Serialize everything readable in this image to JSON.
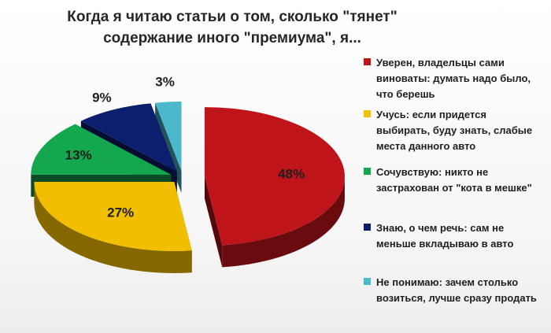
{
  "chart_data": {
    "type": "pie",
    "title_lines": [
      "Когда я читаю статьи о том, сколько \"тянет\"",
      "содержание иного \"премиума\", я..."
    ],
    "categories": [
      "Уверен, владельцы сами виноваты: думать надо было, что берешь",
      "Учусь: если придется выбирать, буду знать, слабые места данного авто",
      "Сочувствую: никто не застрахован от \"кота в мешке\"",
      "Знаю, о чем речь: сам не меньше вкладываю в авто",
      "Не понимаю: зачем столько возиться, лучше сразу продать"
    ],
    "values": [
      48,
      27,
      13,
      9,
      3
    ],
    "data_labels": [
      "48%",
      "27%",
      "13%",
      "9%",
      "3%"
    ],
    "colors": [
      "#c0141b",
      "#f2bf00",
      "#13a84d",
      "#0b1f6e",
      "#4bb8cc"
    ],
    "legend_placement": "right",
    "style": "3d-exploded"
  },
  "legend": {
    "items": [
      {
        "lines": [
          "Уверен, владельцы сами",
          "виноваты: думать надо было,",
          "что берешь"
        ]
      },
      {
        "lines": [
          "Учусь: если придется",
          "выбирать, буду знать, слабые",
          "места данного авто"
        ]
      },
      {
        "lines": [
          "Сочувствую: никто не",
          "застрахован от \"кота в мешке\""
        ]
      },
      {
        "lines": [
          "Знаю, о чем речь: сам не",
          "меньше вкладываю в авто"
        ]
      },
      {
        "lines": [
          "Не понимаю: зачем столько",
          "возиться, лучше сразу продать"
        ]
      }
    ]
  }
}
